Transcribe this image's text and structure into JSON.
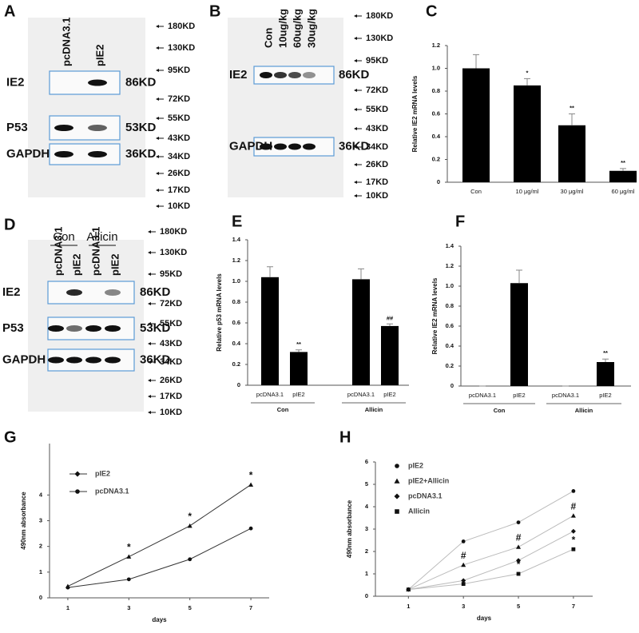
{
  "blots": [
    {
      "label": "A",
      "lanes": [
        "pcDNA3.1",
        "pIE2"
      ],
      "rows": [
        {
          "name": "IE2",
          "size": "86KD"
        },
        {
          "name": "P53",
          "size": "53KD"
        },
        {
          "name": "GAPDH",
          "size": "36KD"
        }
      ],
      "markers": [
        "180KD",
        "130KD",
        "95KD",
        "72KD",
        "55KD",
        "43KD",
        "34KD",
        "26KD",
        "17KD",
        "10KD"
      ]
    },
    {
      "label": "B",
      "lanes": [
        "Con",
        "10ug/kg",
        "60ug/kg",
        "30ug/kg"
      ],
      "rows": [
        {
          "name": "IE2",
          "size": "86KD"
        },
        {
          "name": "GAPDH",
          "size": "36KD"
        }
      ],
      "markers": [
        "180KD",
        "130KD",
        "95KD",
        "72KD",
        "55KD",
        "43KD",
        "34KD",
        "26KD",
        "17KD",
        "10KD"
      ]
    },
    {
      "label": "D",
      "groups": [
        "Con",
        "Allicin"
      ],
      "lanes": [
        "pcDNA3.1",
        "pIE2",
        "pcDNA3.1",
        "pIE2"
      ],
      "rows": [
        {
          "name": "IE2",
          "size": "86KD"
        },
        {
          "name": "P53",
          "size": "53KD"
        },
        {
          "name": "GAPDH",
          "size": "36KD"
        }
      ],
      "markers": [
        "180KD",
        "130KD",
        "95KD",
        "72KD",
        "55KD",
        "43KD",
        "34KD",
        "26KD",
        "17KD",
        "10KD"
      ]
    }
  ],
  "chart_data": [
    {
      "type": "bar",
      "label": "C",
      "ylabel": "Relative IE2 mRNA levels",
      "categories": [
        "Con",
        "10 μg/ml",
        "30 μg/ml",
        "60 μg/ml"
      ],
      "values": [
        1.0,
        0.85,
        0.5,
        0.1
      ],
      "errors": [
        0.12,
        0.06,
        0.1,
        0.02
      ],
      "annotations": [
        null,
        "*",
        "**",
        "**"
      ],
      "color": "#000000",
      "ylim": [
        0,
        1.2
      ],
      "yticks": [
        0,
        0.2,
        0.4,
        0.6,
        0.8,
        {
          "value": 1,
          "label": "1.0"
        },
        1.2
      ]
    },
    {
      "type": "bar",
      "label": "E",
      "ylabel": "Relative p53 mRNA levels",
      "categories": [
        "pcDNA3.1",
        "pIE2",
        "pcDNA3.1",
        "pIE2"
      ],
      "groups": [
        "Con",
        "Allicin"
      ],
      "values": [
        1.04,
        0.32,
        1.02,
        0.57
      ],
      "errors": [
        0.1,
        0.02,
        0.1,
        0.02
      ],
      "annotations": [
        null,
        "**",
        null,
        "##"
      ],
      "color": "#000000",
      "ylim": [
        0,
        1.4
      ],
      "yticks": [
        0,
        0.2,
        0.4,
        0.6,
        0.8,
        {
          "value": 1,
          "label": "1.0"
        },
        1.2,
        1.4
      ]
    },
    {
      "type": "bar",
      "label": "F",
      "ylabel": "Relative IE2 mRNA levels",
      "categories": [
        "pcDNA3.1",
        "pIE2",
        "pcDNA3.1",
        "pIE2"
      ],
      "groups": [
        "Con",
        "Allicin"
      ],
      "values": [
        0,
        1.03,
        0,
        0.24
      ],
      "errors": [
        0,
        0.13,
        0,
        0.03
      ],
      "annotations": [
        null,
        null,
        null,
        "**"
      ],
      "color": "#000000",
      "ylim": [
        0,
        1.4
      ],
      "yticks": [
        0,
        0.2,
        0.4,
        0.6,
        0.8,
        {
          "value": 1,
          "label": "1.0"
        },
        1.2,
        1.4
      ]
    },
    {
      "type": "line",
      "label": "G",
      "xlabel": "days",
      "ylabel": "490nm absorbance",
      "x": [
        1,
        3,
        5,
        7
      ],
      "series": [
        {
          "name": "pIE2",
          "color": "#333333",
          "marker": "triangle",
          "legend_marker": "diamond",
          "values": [
            0.45,
            1.6,
            2.8,
            4.4
          ],
          "annotations": [
            null,
            "*",
            "*",
            "*"
          ]
        },
        {
          "name": "pcDNA3.1",
          "color": "#333333",
          "marker": "circle",
          "legend_marker": "circle",
          "values": [
            0.4,
            0.72,
            1.5,
            2.7
          ],
          "annotations": [
            null,
            null,
            null,
            null
          ]
        }
      ],
      "xlim": [
        0.4,
        7.6
      ],
      "xticks": [
        1,
        3,
        5,
        7
      ],
      "ylim": [
        0,
        6
      ],
      "yticks": [
        0,
        1,
        2,
        3,
        4
      ]
    },
    {
      "type": "line",
      "label": "H",
      "xlabel": "days",
      "ylabel": "490nm absorbance",
      "x": [
        1,
        3,
        5,
        7
      ],
      "series": [
        {
          "name": "pIE2",
          "color": "#bbbbbb",
          "marker": "circle",
          "legend_marker": "circle",
          "values": [
            0.3,
            2.45,
            3.3,
            4.7
          ],
          "annotations": [
            null,
            null,
            null,
            null
          ]
        },
        {
          "name": "pIE2+Allicin",
          "color": "#bbbbbb",
          "marker": "triangle",
          "legend_marker": "triangle",
          "values": [
            0.3,
            1.4,
            2.2,
            3.6
          ],
          "annotations": [
            null,
            "#",
            "#",
            "#"
          ]
        },
        {
          "name": "pcDNA3.1",
          "color": "#bbbbbb",
          "marker": "diamond",
          "legend_marker": "diamond",
          "values": [
            0.3,
            0.7,
            1.6,
            2.9
          ],
          "annotations": [
            null,
            null,
            null,
            null
          ]
        },
        {
          "name": "Allicin",
          "color": "#bbbbbb",
          "marker": "square",
          "legend_marker": "square",
          "values": [
            0.3,
            0.55,
            1.0,
            2.1
          ],
          "annotations": [
            null,
            null,
            "*",
            "*"
          ]
        }
      ],
      "xlim": [
        -0.2,
        7.7
      ],
      "xticks": [
        1,
        3,
        5,
        7
      ],
      "ylim": [
        0,
        6
      ],
      "yticks": [
        0,
        1,
        2,
        3,
        4,
        5,
        6
      ]
    }
  ]
}
